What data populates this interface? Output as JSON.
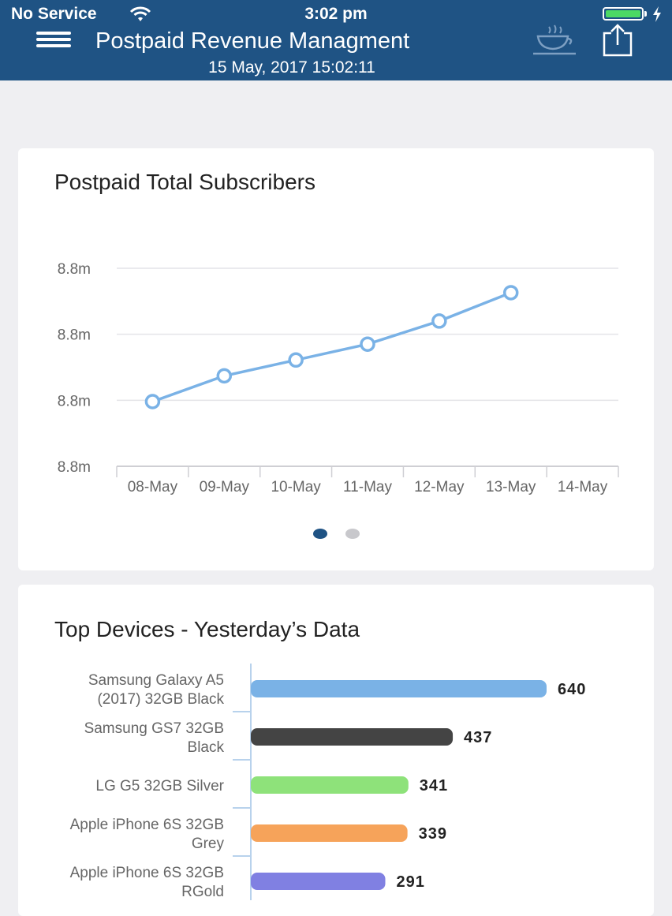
{
  "status_bar": {
    "carrier": "No Service",
    "time": "3:02 pm"
  },
  "header": {
    "title": "Postpaid Revenue Managment",
    "subtitle": "15 May, 2017 15:02:11",
    "icons": [
      "menu-icon",
      "coffee-cup-icon",
      "share-icon"
    ]
  },
  "colors": {
    "header_bg": "#1f5384",
    "line_series": "#7ab2e6",
    "page_dot_active": "#1f5384",
    "page_dot_inactive": "#c8c8cc"
  },
  "subscribers_card": {
    "title": "Postpaid Total Subscribers",
    "page_index": 1,
    "page_count": 2
  },
  "devices_card": {
    "title": "Top Devices - Yesterday’s Data"
  },
  "chart_data": [
    {
      "type": "line",
      "title": "Postpaid Total Subscribers",
      "x": [
        "08-May",
        "09-May",
        "10-May",
        "11-May",
        "12-May",
        "13-May",
        "14-May"
      ],
      "y_tick_labels": [
        "8.8m",
        "8.8m",
        "8.8m",
        "8.8m"
      ],
      "ylim": [
        0,
        3
      ],
      "series": [
        {
          "values": [
            0.98,
            1.37,
            1.61,
            1.85,
            2.2,
            2.63,
            null
          ],
          "color": "#7ab2e6"
        }
      ],
      "grid": true,
      "legend": "none"
    },
    {
      "type": "bar",
      "orientation": "horizontal",
      "title": "Top Devices - Yesterday’s Data",
      "categories": [
        [
          "Samsung Galaxy A5",
          "(2017) 32GB Black"
        ],
        [
          "Samsung GS7 32GB",
          "Black"
        ],
        [
          "LG G5 32GB Silver"
        ],
        [
          "Apple iPhone 6S 32GB",
          "Grey"
        ],
        [
          "Apple iPhone 6S 32GB",
          "RGold"
        ]
      ],
      "values": [
        640,
        437,
        341,
        339,
        291
      ],
      "value_labels": [
        "640",
        "437",
        "341",
        "339",
        "291"
      ],
      "colors": [
        "#7ab2e6",
        "#444444",
        "#8ee27a",
        "#f6a35a",
        "#8080e2"
      ]
    }
  ]
}
